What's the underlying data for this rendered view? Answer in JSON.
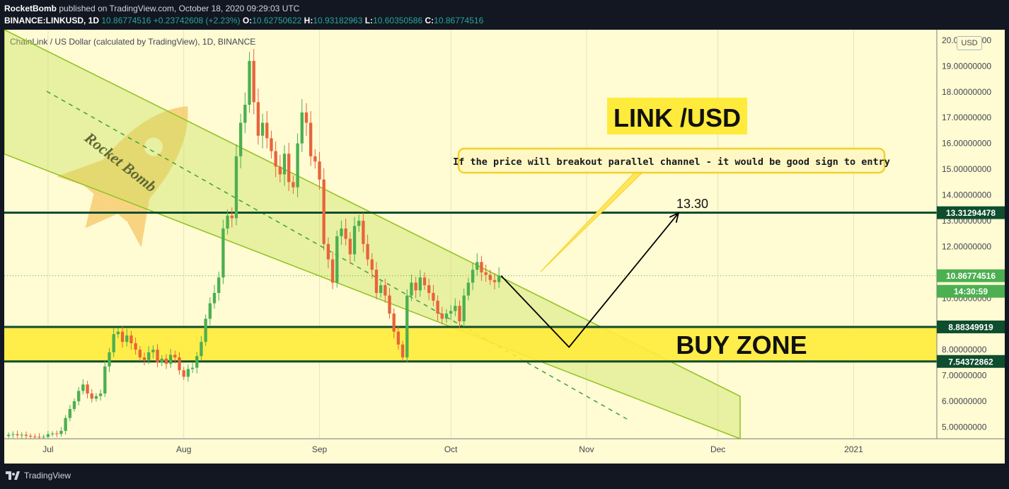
{
  "header": {
    "publisher": "RocketBomb",
    "published_text": "published on TradingView.com, October 18, 2020 09:29:03 UTC",
    "symbol": "BINANCE:LINKUSD, 1D",
    "last": "10.86774516",
    "change": "+0.23742608 (+2.23%)",
    "o_label": "O:",
    "o_value": "10.62750622",
    "h_label": "H:",
    "h_value": "10.93182963",
    "l_label": "L:",
    "l_value": "10.60350586",
    "c_label": "C:",
    "c_value": "10.86774516"
  },
  "chart_title": "ChainLink / US Dollar (calculated by TradingView), 1D, BINANCE",
  "currency_badge": "USD",
  "watermark": "Rocket Bomb",
  "footer": {
    "brand": "TradingView"
  },
  "annotations": {
    "title": "LINK /USD",
    "callout": "If the price will breakout parallel channel - it would be good sign to entry",
    "target_label": "13.30",
    "buy_zone": "BUY ZONE"
  },
  "price_labels": {
    "resistance": "13.31294478",
    "last_price": "10.86774516",
    "countdown": "14:30:59",
    "zone_top": "8.88349919",
    "zone_bottom": "7.54372862"
  },
  "colors": {
    "background": "#131722",
    "plot_background": "#fffbd3",
    "up_candle": "#4caf50",
    "down_candle": "#e8643a",
    "level_line": "#0e4d2e",
    "zone_fill": "#ffeb3b",
    "channel_fill": "#c5e15b",
    "label_bg": "#0e4d2e"
  },
  "chart_data": {
    "type": "candlestick",
    "symbol": "BINANCE:LINKUSD",
    "interval": "1D",
    "y_range": [
      4.6,
      20.3
    ],
    "y_ticks": [
      {
        "v": 5,
        "label": "5.00000000"
      },
      {
        "v": 6,
        "label": "6.00000000"
      },
      {
        "v": 7,
        "label": "7.00000000"
      },
      {
        "v": 8,
        "label": "8.00000000"
      },
      {
        "v": 10,
        "label": "10.00000000"
      },
      {
        "v": 12,
        "label": "12.00000000"
      },
      {
        "v": 13,
        "label": "13.00000000"
      },
      {
        "v": 14,
        "label": "14.00000000"
      },
      {
        "v": 15,
        "label": "15.00000000"
      },
      {
        "v": 16,
        "label": "16.00000000"
      },
      {
        "v": 17,
        "label": "17.00000000"
      },
      {
        "v": 18,
        "label": "18.00000000"
      },
      {
        "v": 19,
        "label": "19.00000000"
      },
      {
        "v": 20,
        "label": "20.00000000"
      }
    ],
    "x_ticks": [
      {
        "d": "2020-07-01",
        "label": "Jul"
      },
      {
        "d": "2020-08-01",
        "label": "Aug"
      },
      {
        "d": "2020-09-01",
        "label": "Sep"
      },
      {
        "d": "2020-10-01",
        "label": "Oct"
      },
      {
        "d": "2020-11-01",
        "label": "Nov"
      },
      {
        "d": "2020-12-01",
        "label": "Dec"
      },
      {
        "d": "2021-01-01",
        "label": "2021"
      }
    ],
    "x_range": [
      "2020-06-21",
      "2021-01-20"
    ],
    "close_start_date": "2020-06-22",
    "closes": [
      4.7,
      4.72,
      4.68,
      4.7,
      4.66,
      4.63,
      4.62,
      4.6,
      4.62,
      4.72,
      4.75,
      4.73,
      4.85,
      5.35,
      5.7,
      6.0,
      6.4,
      6.65,
      6.3,
      6.1,
      6.2,
      6.3,
      7.35,
      7.9,
      8.6,
      8.7,
      8.3,
      8.55,
      8.25,
      8.0,
      7.7,
      7.6,
      7.9,
      8.0,
      7.5,
      7.65,
      7.45,
      7.8,
      7.7,
      7.2,
      6.95,
      7.25,
      7.3,
      7.75,
      8.3,
      9.2,
      9.8,
      10.2,
      10.8,
      12.7,
      13.2,
      13.1,
      15.5,
      16.8,
      17.5,
      19.2,
      17.6,
      16.3,
      16.8,
      16.2,
      15.7,
      15.1,
      14.8,
      15.6,
      14.5,
      14.3,
      16.0,
      17.2,
      16.8,
      15.5,
      15.3,
      14.6,
      12.1,
      11.5,
      10.6,
      12.4,
      12.7,
      12.3,
      11.7,
      12.8,
      13.0,
      12.1,
      11.5,
      11.1,
      10.2,
      10.5,
      10.1,
      9.4,
      8.7,
      8.2,
      7.7,
      10.1,
      10.6,
      10.3,
      10.8,
      10.5,
      10.2,
      9.9,
      9.4,
      9.2,
      9.4,
      9.5,
      9.7,
      9.1,
      10.1,
      10.6,
      11.1,
      11.4,
      11.0,
      10.9,
      10.7,
      10.62,
      10.87
    ],
    "price_lines": [
      {
        "name": "resistance",
        "value": 13.31294478
      },
      {
        "name": "zone_top",
        "value": 8.88349919
      },
      {
        "name": "zone_bottom",
        "value": 7.54372862
      }
    ],
    "last_price": 10.86774516,
    "target": 13.3
  }
}
